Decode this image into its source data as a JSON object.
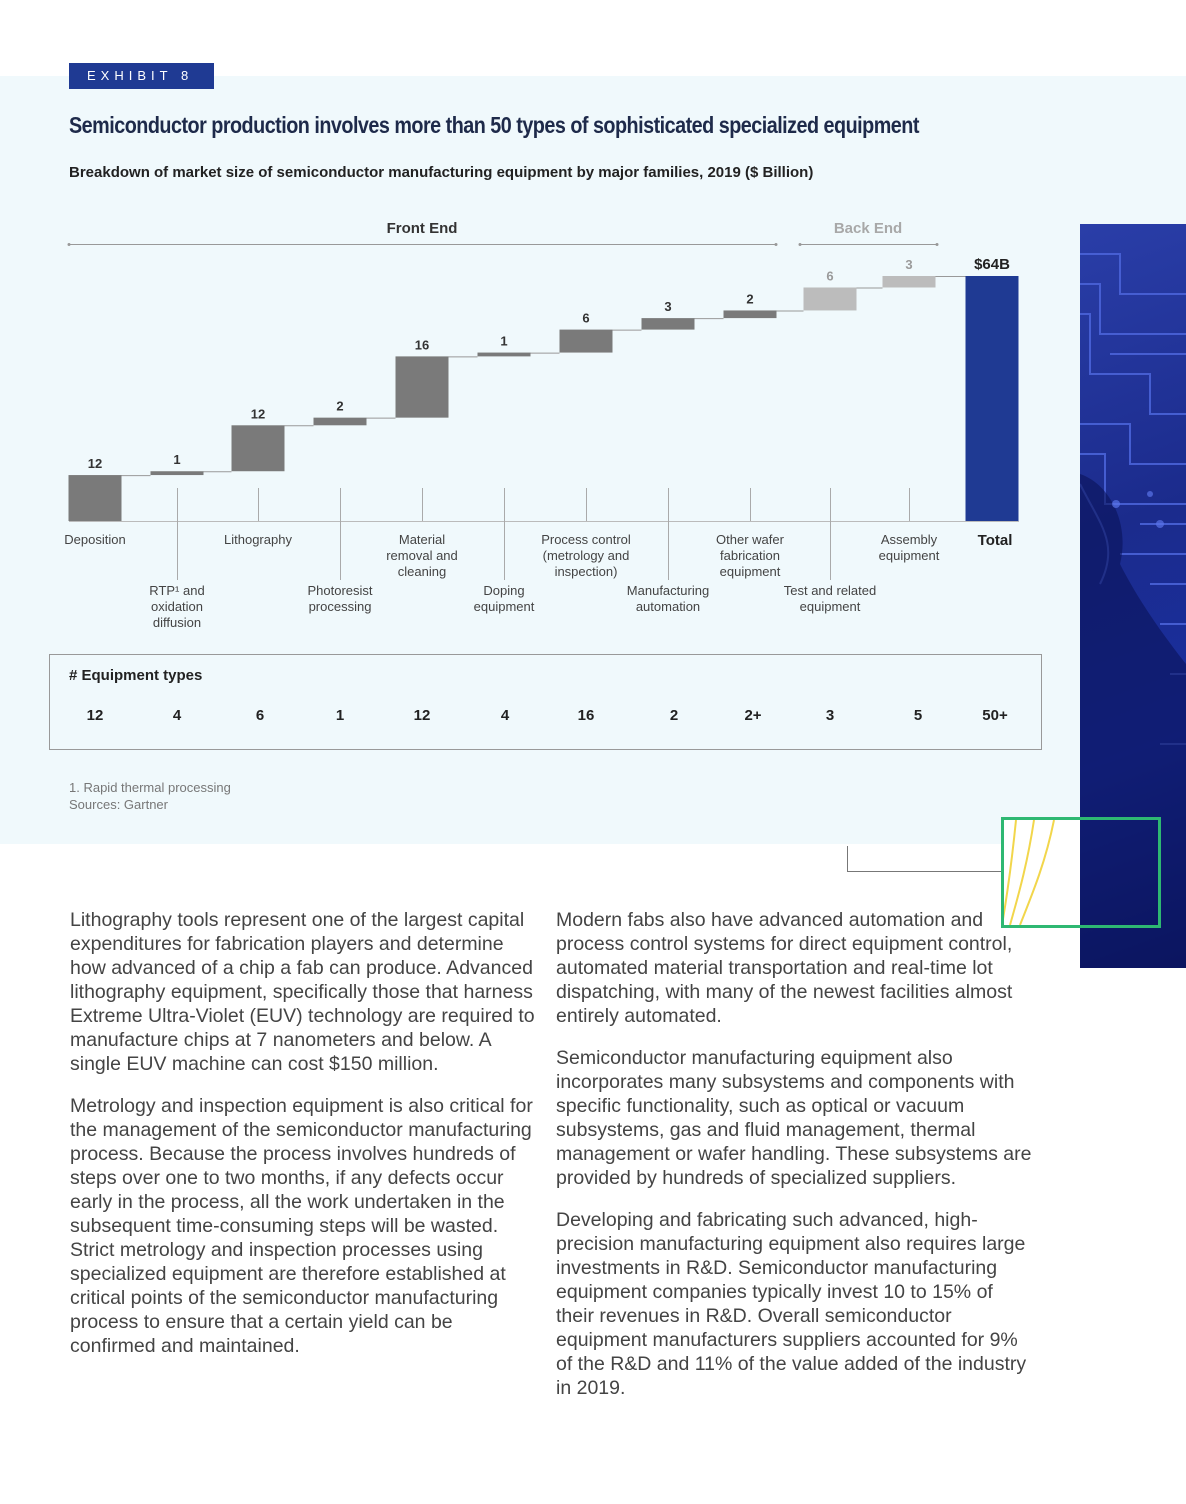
{
  "exhibit_label": "EXHIBIT 8",
  "headline": "Semiconductor production involves more than 50 types of sophisticated specialized equipment",
  "subtitle": "Breakdown of market size of semiconductor manufacturing equipment by major families, 2019 ($ Billion)",
  "chart_data": {
    "type": "bar",
    "subtype": "waterfall",
    "ylim": [
      0,
      64
    ],
    "groups": [
      {
        "label": "Front End",
        "from": "Deposition",
        "to": "Other wafer fabrication equipment"
      },
      {
        "label": "Back End",
        "from": "Test and related equipment",
        "to": "Assembly equipment"
      }
    ],
    "categories": [
      {
        "label": [
          "Deposition"
        ],
        "value": 12,
        "value_label": "12",
        "segment": "front",
        "row": "upper"
      },
      {
        "label": [
          "RTP¹ and",
          "oxidation",
          "diffusion"
        ],
        "value": 1,
        "value_label": "1",
        "segment": "front",
        "row": "lower"
      },
      {
        "label": [
          "Lithography"
        ],
        "value": 12,
        "value_label": "12",
        "segment": "front",
        "row": "upper"
      },
      {
        "label": [
          "Photoresist",
          "processing"
        ],
        "value": 2,
        "value_label": "2",
        "segment": "front",
        "row": "lower"
      },
      {
        "label": [
          "Material",
          "removal and",
          "cleaning"
        ],
        "value": 16,
        "value_label": "16",
        "segment": "front",
        "row": "upper"
      },
      {
        "label": [
          "Doping",
          "equipment"
        ],
        "value": 1,
        "value_label": "1",
        "segment": "front",
        "row": "lower"
      },
      {
        "label": [
          "Process control",
          "(metrology and",
          "inspection)"
        ],
        "value": 6,
        "value_label": "6",
        "segment": "front",
        "row": "upper"
      },
      {
        "label": [
          "Manufacturing",
          "automation"
        ],
        "value": 3,
        "value_label": "3",
        "segment": "front",
        "row": "lower"
      },
      {
        "label": [
          "Other wafer",
          "fabrication",
          "equipment"
        ],
        "value": 2,
        "value_label": "2",
        "segment": "front",
        "row": "upper"
      },
      {
        "label": [
          "Test and related",
          "equipment"
        ],
        "value": 6,
        "value_label": "6",
        "segment": "back",
        "row": "lower"
      },
      {
        "label": [
          "Assembly",
          "equipment"
        ],
        "value": 3,
        "value_label": "3",
        "segment": "back",
        "row": "upper"
      }
    ],
    "total": {
      "label": "Total",
      "value": 64,
      "value_label": "$64B"
    },
    "colors": {
      "front": "#7a7a7a",
      "back": "#bcbcbc",
      "total": "#1f3a93",
      "back_label": "#9a9a9a"
    }
  },
  "equipment_types": {
    "title": "# Equipment types",
    "values": [
      "12",
      "4",
      "6",
      "1",
      "12",
      "4",
      "16",
      "2",
      "2+",
      "3",
      "5",
      "50+"
    ]
  },
  "footnotes": [
    "1. Rapid thermal processing",
    "Sources: Gartner"
  ],
  "body_left": [
    "Lithography tools represent one of the largest capital expenditures for fabrication players and determine how advanced of a chip a fab can produce. Advanced lithography equipment, specifically those that harness Extreme Ultra-Violet (EUV) technology are required to manufacture chips at 7 nanometers and below. A single EUV machine can cost $150 million.",
    "Metrology and inspection equipment is also critical for the management of the semiconductor manufacturing process. Because the process involves hundreds of steps over one to two months, if any defects occur early in the process, all the work undertaken in the subsequent time-consuming steps will be wasted. Strict metrology and inspection processes using specialized equipment are therefore established at critical points of the semiconductor manufacturing process to ensure that a certain yield can be confirmed and maintained."
  ],
  "body_right": [
    "Modern fabs also have advanced automation and process control systems for direct equipment control, automated material transportation and real-time lot dispatching, with many of the newest facilities almost entirely automated.",
    "Semiconductor manufacturing equipment also incorporates many subsystems and components with specific functionality, such as optical or vacuum subsystems, gas and fluid management, thermal management or wafer handling. These subsystems are provided by hundreds of specialized suppliers.",
    "Developing and fabricating such advanced, high-precision manufacturing equipment also requires large investments in R&D. Semiconductor manufacturing equipment companies typically invest 10 to 15% of their revenues in R&D. Overall semiconductor equipment manufacturers suppliers accounted for 9% of the R&D and 11% of the value added of the industry in 2019."
  ]
}
